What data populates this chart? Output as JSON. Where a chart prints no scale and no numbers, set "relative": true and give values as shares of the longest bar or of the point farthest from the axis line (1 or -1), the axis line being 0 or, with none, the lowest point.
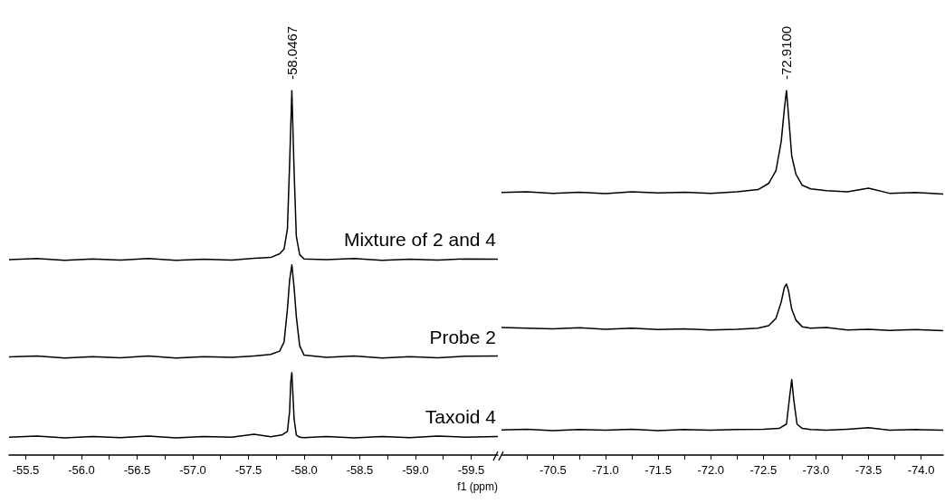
{
  "chart_data": [
    {
      "type": "line",
      "relative": true,
      "marker": "none",
      "xlabel": "f1 (ppm)",
      "xlim": [
        -55.35,
        -59.74
      ],
      "xticks": [
        {
          "value": -55.5,
          "label": "-55.5"
        },
        {
          "value": -55.75,
          "label": null
        },
        {
          "value": -56,
          "label": "-56.0"
        },
        {
          "value": -56.25,
          "label": null
        },
        {
          "value": -56.5,
          "label": "-56.5"
        },
        {
          "value": -56.75,
          "label": null
        },
        {
          "value": -57,
          "label": "-57.0"
        },
        {
          "value": -57.25,
          "label": null
        },
        {
          "value": -57.5,
          "label": "-57.5"
        },
        {
          "value": -57.75,
          "label": null
        },
        {
          "value": -58,
          "label": "-58.0"
        },
        {
          "value": -58.25,
          "label": null
        },
        {
          "value": -58.5,
          "label": "-58.5"
        },
        {
          "value": -58.75,
          "label": null
        },
        {
          "value": -59,
          "label": "-59.0"
        },
        {
          "value": -59.25,
          "label": null
        },
        {
          "value": -59.5,
          "label": "-59.5"
        }
      ],
      "annotations": [
        {
          "text": "-58.0467",
          "x": -57.89,
          "y": 1
        }
      ],
      "series": [
        {
          "name": "Mixture of 2 and 4",
          "color": "#000000",
          "x": [
            -55.35,
            -55.6,
            -55.85,
            -56.1,
            -56.35,
            -56.6,
            -56.85,
            -57.1,
            -57.35,
            -57.55,
            -57.7,
            -57.78,
            -57.82,
            -57.85,
            -57.87,
            -57.89,
            -57.91,
            -57.93,
            -57.96,
            -58.0,
            -58.2,
            -58.45,
            -58.7,
            -58.95,
            -59.2,
            -59.45,
            -59.74
          ],
          "values": [
            0.536,
            0.539,
            0.534,
            0.538,
            0.535,
            0.539,
            0.534,
            0.537,
            0.535,
            0.54,
            0.542,
            0.552,
            0.565,
            0.62,
            0.8,
            1,
            0.78,
            0.6,
            0.55,
            0.538,
            0.536,
            0.539,
            0.534,
            0.537,
            0.535,
            0.538,
            0.537
          ]
        },
        {
          "name": "Probe 2",
          "color": "#000000",
          "x": [
            -55.35,
            -55.6,
            -55.85,
            -56.1,
            -56.35,
            -56.6,
            -56.85,
            -57.1,
            -57.35,
            -57.55,
            -57.7,
            -57.78,
            -57.82,
            -57.85,
            -57.87,
            -57.89,
            -57.91,
            -57.93,
            -57.96,
            -58.0,
            -58.2,
            -58.45,
            -58.7,
            -58.95,
            -59.2,
            -59.45,
            -59.74
          ],
          "values": [
            0.269,
            0.272,
            0.266,
            0.27,
            0.267,
            0.272,
            0.266,
            0.27,
            0.268,
            0.272,
            0.276,
            0.285,
            0.31,
            0.4,
            0.48,
            0.522,
            0.46,
            0.38,
            0.3,
            0.274,
            0.268,
            0.272,
            0.266,
            0.27,
            0.267,
            0.271,
            0.272
          ]
        },
        {
          "name": "Taxoid 4",
          "color": "#000000",
          "x": [
            -55.35,
            -55.6,
            -55.85,
            -56.1,
            -56.35,
            -56.6,
            -56.85,
            -57.1,
            -57.35,
            -57.55,
            -57.7,
            -57.8,
            -57.85,
            -57.87,
            -57.88,
            -57.89,
            -57.91,
            -57.93,
            -57.96,
            -58.0,
            -58.2,
            -58.45,
            -58.7,
            -58.95,
            -59.2,
            -59.45,
            -59.74
          ],
          "values": [
            0.049,
            0.052,
            0.047,
            0.051,
            0.048,
            0.052,
            0.047,
            0.051,
            0.049,
            0.057,
            0.05,
            0.055,
            0.065,
            0.12,
            0.2,
            0.226,
            0.1,
            0.055,
            0.049,
            0.048,
            0.051,
            0.047,
            0.051,
            0.048,
            0.052,
            0.049,
            0.051
          ]
        }
      ]
    },
    {
      "type": "line",
      "relative": true,
      "marker": "none",
      "xlim": [
        -70.01,
        -74.21
      ],
      "xticks": [
        {
          "value": -70.25,
          "label": null
        },
        {
          "value": -70.5,
          "label": "-70.5"
        },
        {
          "value": -70.75,
          "label": null
        },
        {
          "value": -71,
          "label": "-71.0"
        },
        {
          "value": -71.25,
          "label": null
        },
        {
          "value": -71.5,
          "label": "-71.5"
        },
        {
          "value": -71.75,
          "label": null
        },
        {
          "value": -72,
          "label": "-72.0"
        },
        {
          "value": -72.25,
          "label": null
        },
        {
          "value": -72.5,
          "label": "-72.5"
        },
        {
          "value": -72.75,
          "label": null
        },
        {
          "value": -73,
          "label": "-73.0"
        },
        {
          "value": -73.25,
          "label": null
        },
        {
          "value": -73.5,
          "label": "-73.5"
        },
        {
          "value": -73.75,
          "label": null
        },
        {
          "value": -74,
          "label": "-74.0"
        }
      ],
      "annotations": [
        {
          "text": "-72.9100",
          "x": -72.72,
          "y": 1
        }
      ],
      "series": [
        {
          "color": "#000000",
          "x": [
            -70.01,
            -70.25,
            -70.5,
            -70.75,
            -71.0,
            -71.25,
            -71.5,
            -71.75,
            -72.0,
            -72.25,
            -72.45,
            -72.55,
            -72.62,
            -72.67,
            -72.7,
            -72.72,
            -72.74,
            -72.77,
            -72.81,
            -72.87,
            -72.95,
            -73.1,
            -73.3,
            -73.5,
            -73.7,
            -73.95,
            -74.21
          ],
          "values": [
            0.72,
            0.722,
            0.718,
            0.721,
            0.717,
            0.722,
            0.719,
            0.721,
            0.718,
            0.722,
            0.728,
            0.745,
            0.78,
            0.86,
            0.95,
            1,
            0.93,
            0.82,
            0.77,
            0.74,
            0.73,
            0.725,
            0.722,
            0.732,
            0.718,
            0.72,
            0.716
          ]
        },
        {
          "color": "#000000",
          "x": [
            -70.01,
            -70.25,
            -70.5,
            -70.75,
            -71.0,
            -71.25,
            -71.5,
            -71.75,
            -72.0,
            -72.25,
            -72.45,
            -72.55,
            -72.62,
            -72.67,
            -72.7,
            -72.72,
            -72.74,
            -72.77,
            -72.81,
            -72.87,
            -72.95,
            -73.1,
            -73.3,
            -73.5,
            -73.7,
            -73.95,
            -74.21
          ],
          "values": [
            0.35,
            0.348,
            0.346,
            0.349,
            0.345,
            0.348,
            0.344,
            0.346,
            0.343,
            0.345,
            0.348,
            0.355,
            0.375,
            0.42,
            0.46,
            0.469,
            0.45,
            0.4,
            0.37,
            0.352,
            0.348,
            0.35,
            0.343,
            0.345,
            0.342,
            0.344,
            0.341
          ]
        },
        {
          "color": "#000000",
          "x": [
            -70.01,
            -70.25,
            -70.5,
            -70.75,
            -71.0,
            -71.25,
            -71.5,
            -71.75,
            -72.0,
            -72.25,
            -72.5,
            -72.65,
            -72.72,
            -72.75,
            -72.77,
            -72.79,
            -72.82,
            -72.87,
            -72.95,
            -73.1,
            -73.3,
            -73.5,
            -73.7,
            -73.95,
            -74.21
          ],
          "values": [
            0.069,
            0.071,
            0.067,
            0.07,
            0.068,
            0.071,
            0.067,
            0.07,
            0.068,
            0.07,
            0.071,
            0.073,
            0.085,
            0.16,
            0.207,
            0.15,
            0.085,
            0.073,
            0.07,
            0.068,
            0.071,
            0.075,
            0.068,
            0.07,
            0.068
          ]
        }
      ]
    }
  ]
}
